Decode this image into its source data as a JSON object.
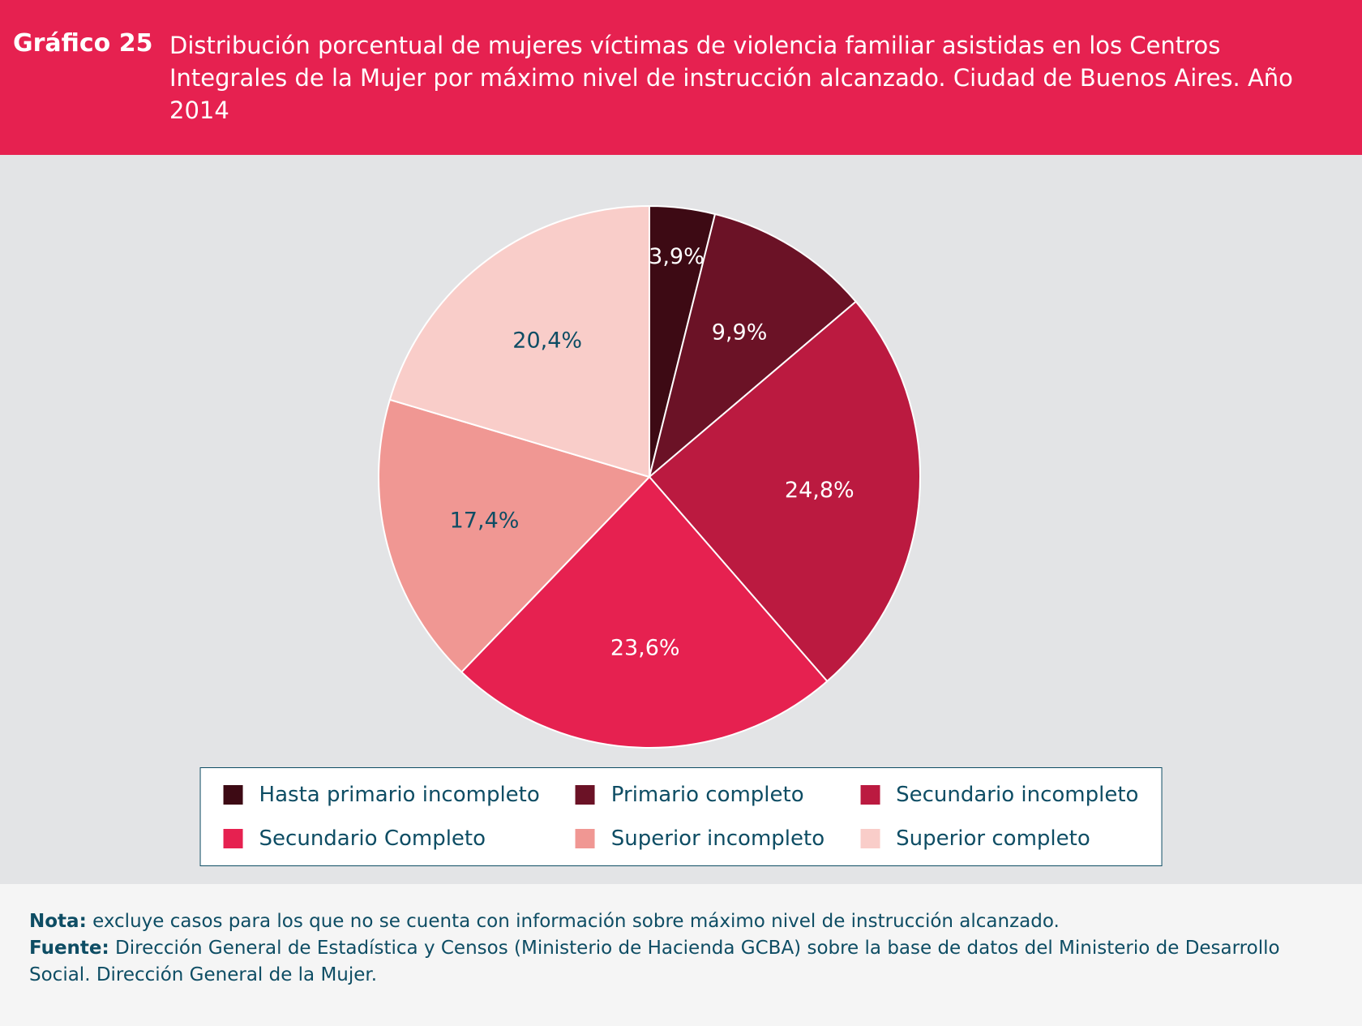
{
  "header": {
    "number": "Gráfico 25",
    "title": "Distribución porcentual de mujeres víctimas de violencia familiar asistidas en los Centros Integrales de la Mujer por máximo nivel de instrucción alcanzado. Ciudad de Buenos Aires. Año 2014"
  },
  "chart_data": {
    "type": "pie",
    "start": "top, clockwise",
    "categories": [
      "Hasta primario incompleto",
      "Primario completo",
      "Secundario incompleto",
      "Secundario Completo",
      "Superior incompleto",
      "Superior completo"
    ],
    "values": [
      3.9,
      9.9,
      24.8,
      23.6,
      17.4,
      20.4
    ],
    "labels": [
      "3,9%",
      "9,9%",
      "24,8%",
      "23,6%",
      "17,4%",
      "20,4%"
    ],
    "colors": [
      "#3d0a14",
      "#6b1226",
      "#bb1a40",
      "#e62150",
      "#f09793",
      "#f9cdc9"
    ],
    "label_colors": [
      "#ffffff",
      "#ffffff",
      "#ffffff",
      "#ffffff",
      "#0e4d64",
      "#0e4d64"
    ],
    "legend_position": "bottom"
  },
  "footer": {
    "nota_label": "Nota:",
    "nota": " excluye casos para los que no se cuenta con información sobre máximo nivel de instrucción alcanzado.",
    "fuente_label": "Fuente:",
    "fuente": " Dirección General de Estadística y Censos (Ministerio de Hacienda GCBA) sobre la base de datos del Ministerio de Desarrollo Social. Dirección General de la Mujer."
  }
}
